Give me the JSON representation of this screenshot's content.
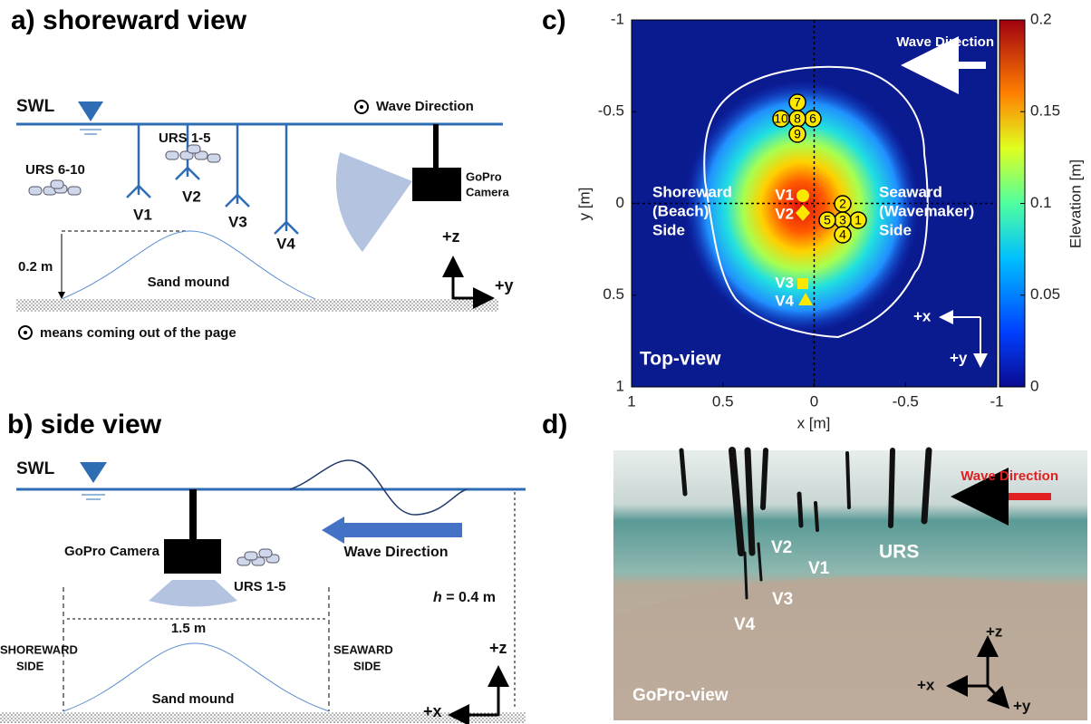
{
  "panel_a": {
    "label": "a) shoreward view",
    "swl": "SWL",
    "wave_direction": "Wave Direction",
    "urs_group_1": "URS 1-5",
    "urs_group_2": "URS 6-10",
    "probes": [
      "V1",
      "V2",
      "V3",
      "V4"
    ],
    "camera": [
      "GoPro",
      "Camera"
    ],
    "mound_height": "0.2 m",
    "mound": "Sand mound",
    "axes": [
      "+z",
      "+y"
    ],
    "note": "means coming out of the page"
  },
  "panel_b": {
    "label": "b) side view",
    "swl": "SWL",
    "camera": "GoPro Camera",
    "wave_direction": "Wave Direction",
    "urs_group": "URS 1-5",
    "width": "1.5 m",
    "depth": [
      "h",
      "= 0.4 m"
    ],
    "shoreward_side": [
      "SHOREWARD",
      "SIDE"
    ],
    "seaward_side": [
      "SEAWARD",
      "SIDE"
    ],
    "mound": "Sand mound",
    "axes": [
      "+z",
      "+x"
    ]
  },
  "panel_c": {
    "label": "c)",
    "type": "heatmap",
    "xlabel": "x [m]",
    "ylabel": "y [m]",
    "xlim": [
      1,
      -1
    ],
    "xticks": [
      1,
      0.5,
      0,
      -0.5,
      -1
    ],
    "ylim": [
      -1,
      1
    ],
    "yticks": [
      -1,
      -0.5,
      0,
      0.5,
      1
    ],
    "colorbar": {
      "label": "Elevation [m]",
      "lim": [
        0,
        0.2
      ],
      "ticks": [
        0,
        0.05,
        0.1,
        0.15,
        0.2
      ]
    },
    "wave_direction": "Wave Direction",
    "shoreward_side": [
      "Shoreward",
      "(Beach)",
      "Side"
    ],
    "seaward_side": [
      "Seaward",
      "(Wavemaker)",
      "Side"
    ],
    "view": "Top-view",
    "axes": [
      "+x",
      "+y"
    ],
    "probes": [
      "V1",
      "V2",
      "V3",
      "V4"
    ],
    "urs": [
      "1",
      "2",
      "3",
      "4",
      "5",
      "6",
      "7",
      "8",
      "9",
      "10"
    ]
  },
  "panel_d": {
    "label": "d)",
    "wave_direction": "Wave Direction",
    "probes": [
      "V1",
      "V2",
      "V3",
      "V4"
    ],
    "urs": "URS",
    "view": "GoPro-view",
    "axes": [
      "+z",
      "+x",
      "+y"
    ]
  }
}
